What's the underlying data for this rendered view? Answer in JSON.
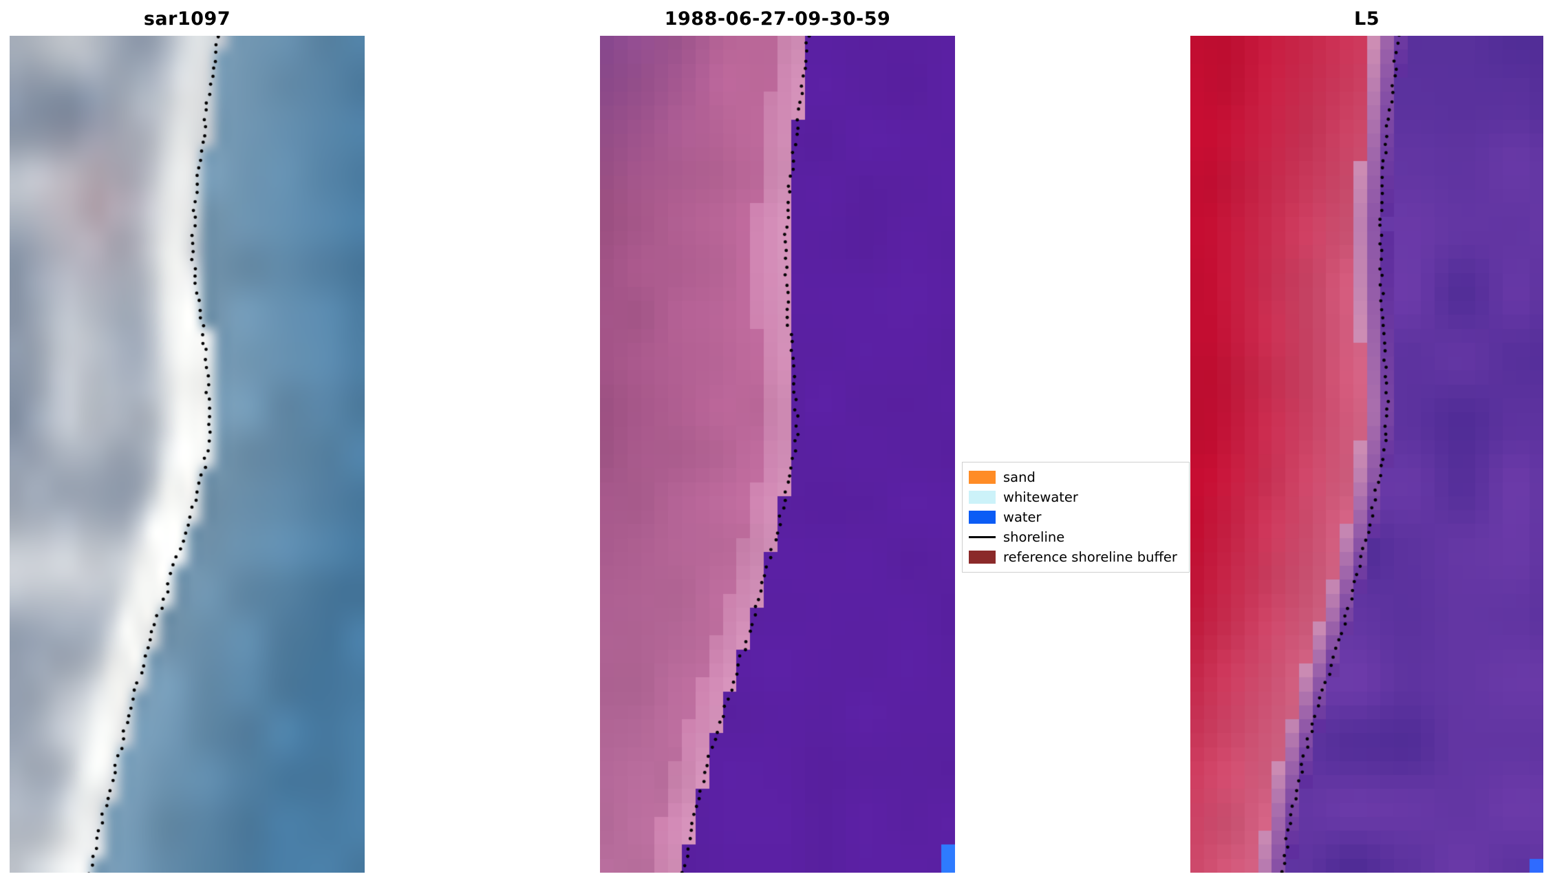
{
  "chart_data": {
    "type": "image",
    "figure_kind": "satellite-shoreline-detection-panels",
    "panels": [
      {
        "title": "sar1097",
        "kind": "sar",
        "shoreline": [
          [
            0,
            0.585
          ],
          [
            0.06,
            0.565
          ],
          [
            0.12,
            0.545
          ],
          [
            0.19,
            0.525
          ],
          [
            0.26,
            0.515
          ],
          [
            0.31,
            0.53
          ],
          [
            0.37,
            0.55
          ],
          [
            0.43,
            0.558
          ],
          [
            0.47,
            0.565
          ],
          [
            0.52,
            0.545
          ],
          [
            0.58,
            0.505
          ],
          [
            0.64,
            0.46
          ],
          [
            0.71,
            0.405
          ],
          [
            0.79,
            0.35
          ],
          [
            0.87,
            0.3
          ],
          [
            0.94,
            0.258
          ],
          [
            1,
            0.225
          ]
        ],
        "colors": {
          "water_near": "#7b9cb4",
          "water_far": "#477aa1",
          "beach_white": "#f8f9f7",
          "land_light": "#ccd0d6",
          "land_dark": "#7b899e",
          "pink_tint": "#b18e99"
        }
      },
      {
        "title": "1988-06-27-09-30-59",
        "kind": "classification",
        "shoreline": [
          [
            0,
            0.585
          ],
          [
            0.05,
            0.575
          ],
          [
            0.11,
            0.555
          ],
          [
            0.18,
            0.535
          ],
          [
            0.25,
            0.52
          ],
          [
            0.33,
            0.528
          ],
          [
            0.41,
            0.548
          ],
          [
            0.47,
            0.556
          ],
          [
            0.53,
            0.535
          ],
          [
            0.61,
            0.488
          ],
          [
            0.69,
            0.437
          ],
          [
            0.77,
            0.378
          ],
          [
            0.85,
            0.315
          ],
          [
            0.93,
            0.268
          ],
          [
            1,
            0.235
          ]
        ],
        "colors": {
          "water": "#5a20a2",
          "buffer_light": "#d593bb",
          "buffer_mid": "#bd699b",
          "buffer_dark": "#9c4f82",
          "corner_dark": "#8a4990",
          "patch_blue": "#2e7bff"
        }
      },
      {
        "title": "L5",
        "kind": "landsat",
        "shoreline": [
          [
            0,
            0.59
          ],
          [
            0.07,
            0.57
          ],
          [
            0.15,
            0.55
          ],
          [
            0.22,
            0.537
          ],
          [
            0.3,
            0.542
          ],
          [
            0.38,
            0.552
          ],
          [
            0.45,
            0.56
          ],
          [
            0.52,
            0.54
          ],
          [
            0.6,
            0.5
          ],
          [
            0.68,
            0.452
          ],
          [
            0.76,
            0.392
          ],
          [
            0.85,
            0.33
          ],
          [
            0.93,
            0.287
          ],
          [
            1,
            0.26
          ]
        ],
        "colors": {
          "red_deep": "#c30d31",
          "red_rose": "#d06182",
          "trans_pink": "#cf8fb4",
          "purple_mid": "#5e2d9e",
          "purple_dark": "#4e2b95",
          "purple_light": "#6f3cab",
          "patch_blue": "#2f6bff"
        }
      }
    ],
    "legend": {
      "position": "center-right",
      "items": [
        {
          "label": "sand",
          "type": "patch",
          "color": "#ff8c26"
        },
        {
          "label": "whitewater",
          "type": "patch",
          "color": "#ccf2f9"
        },
        {
          "label": "water",
          "type": "patch",
          "color": "#0b5cf5"
        },
        {
          "label": "shoreline",
          "type": "line",
          "color": "#000000"
        },
        {
          "label": "reference shoreline buffer",
          "type": "patch",
          "color": "#8b2a2a"
        }
      ]
    }
  }
}
